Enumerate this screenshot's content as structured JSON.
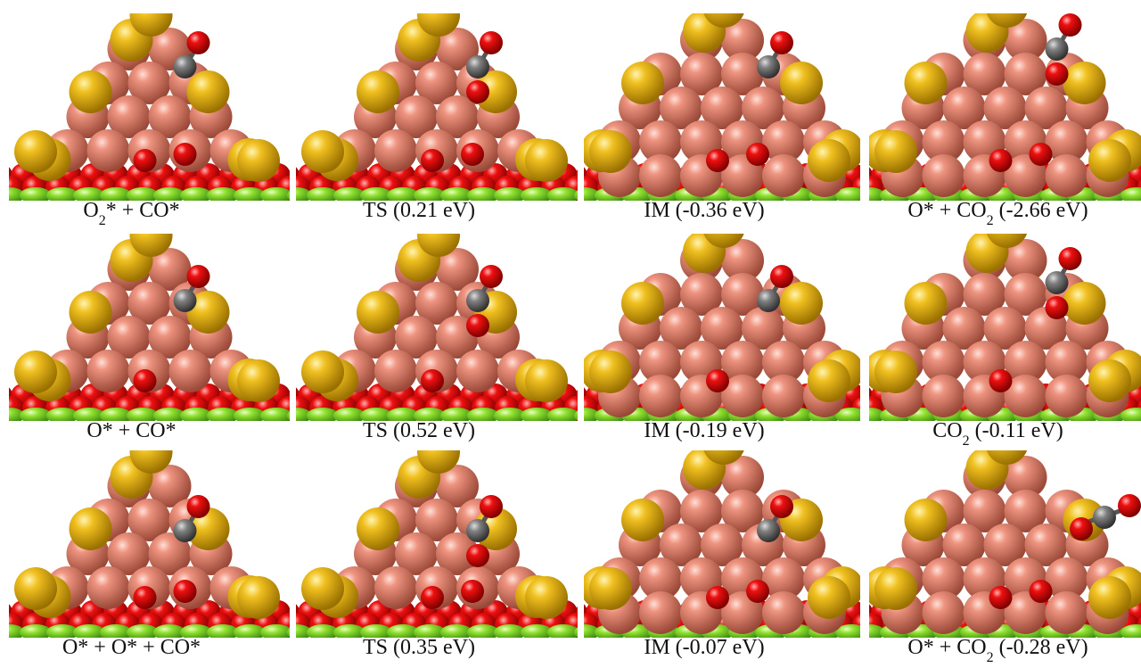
{
  "panels": [
    [
      [
        "O",
        "2",
        "* + CO*"
      ],
      [
        "TS (0.21 eV)"
      ],
      [
        "IM (-0.36 eV)"
      ],
      [
        "O* + CO",
        "2",
        " (-2.66 eV)"
      ]
    ],
    [
      [
        "O* + CO*"
      ],
      [
        "TS (0.52 eV)"
      ],
      [
        "IM (-0.19 eV)"
      ],
      [
        "CO",
        "2",
        " (-0.11 eV)"
      ]
    ],
    [
      [
        "O* + O* + CO*"
      ],
      [
        "TS (0.35 eV)"
      ],
      [
        "IM (-0.07 eV)"
      ],
      [
        "O* + CO",
        "2",
        " (-0.28 eV)"
      ]
    ]
  ]
}
